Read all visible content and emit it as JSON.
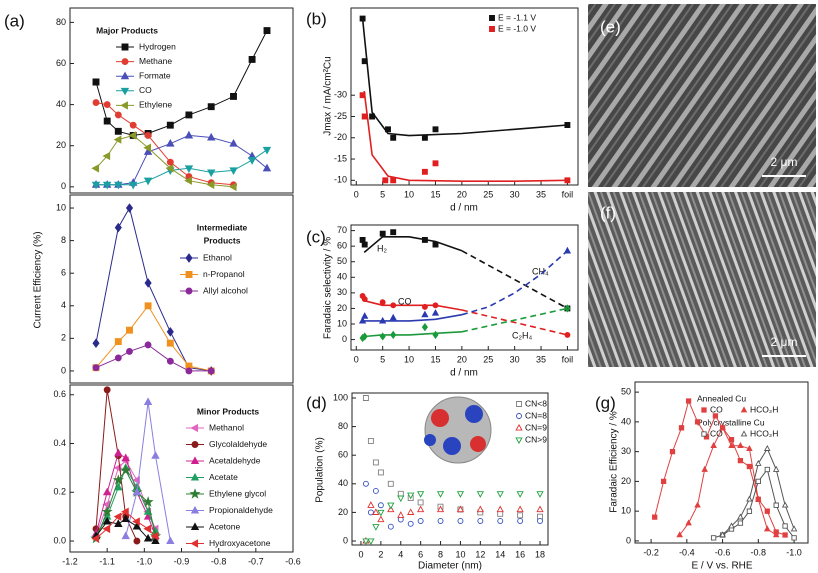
{
  "chart_data": [
    {
      "type": "line",
      "panel_label": "(a)",
      "legend_title": "Major Products",
      "x": [
        -1.13,
        -1.1,
        -1.07,
        -1.03,
        -0.99,
        -0.93,
        -0.88,
        -0.82,
        -0.76,
        -0.71,
        -0.67
      ],
      "xlim": [
        -1.2,
        -0.6
      ],
      "ylim": [
        -3,
        87
      ],
      "yticks": [
        0,
        20,
        40,
        60,
        80
      ],
      "series": [
        {
          "name": "Hydrogen",
          "color": "#111111",
          "marker": "square",
          "values": [
            51,
            32,
            27,
            25,
            26,
            30,
            35,
            39,
            44,
            62,
            76
          ]
        },
        {
          "name": "Methane",
          "color": "#e03c31",
          "marker": "circle",
          "values": [
            41,
            40,
            35,
            30,
            25,
            12,
            5,
            2,
            1,
            null,
            null
          ]
        },
        {
          "name": "Formate",
          "color": "#4b4fb8",
          "marker": "triangle",
          "values": [
            1,
            1,
            1,
            2,
            17,
            21,
            25,
            24,
            21,
            15,
            9
          ]
        },
        {
          "name": "CO",
          "color": "#1aa0a0",
          "marker": "down",
          "values": [
            1,
            1,
            1,
            1,
            3,
            8,
            9,
            7,
            8,
            13,
            18
          ]
        },
        {
          "name": "Ethylene",
          "color": "#8a9a2a",
          "marker": "left",
          "values": [
            9,
            15,
            23,
            25,
            19,
            9,
            3,
            1,
            0,
            null,
            null
          ]
        }
      ]
    },
    {
      "type": "line",
      "ylabel": "Current Efficiency (%)",
      "legend_title": [
        "Intermediate",
        "Products"
      ],
      "x": [
        -1.13,
        -1.07,
        -1.04,
        -0.99,
        -0.93,
        -0.88,
        -0.82
      ],
      "xlim": [
        -1.2,
        -0.6
      ],
      "ylim": [
        -0.74,
        10.8
      ],
      "yticks": [
        0,
        2,
        4,
        6,
        8,
        10
      ],
      "series": [
        {
          "name": "Ethanol",
          "color": "#2a2a8c",
          "marker": "diamond",
          "values": [
            1.7,
            8.8,
            10,
            5.4,
            2.4,
            0.2,
            0
          ]
        },
        {
          "name": "n-Propanol",
          "color": "#f0901e",
          "marker": "square",
          "values": [
            0.2,
            1.8,
            2.5,
            4,
            1.7,
            0.3,
            0
          ]
        },
        {
          "name": "Allyl alcohol",
          "color": "#8a2a9a",
          "marker": "circle",
          "values": [
            0.2,
            0.8,
            1.2,
            1.6,
            0.6,
            0,
            0
          ]
        }
      ]
    },
    {
      "type": "line",
      "legend_title": "Minor Products",
      "x": [
        -1.13,
        -1.1,
        -1.07,
        -1.05,
        -1.02,
        -0.99,
        -0.97,
        -0.93
      ],
      "xlim": [
        -1.2,
        -0.6
      ],
      "ylim": [
        -0.045,
        0.64
      ],
      "xticks": [
        -1.2,
        -1.1,
        {
          "value": -1,
          "label": "-1.0"
        },
        -0.9,
        -0.8,
        -0.7,
        -0.6
      ],
      "yticks": [
        {
          "value": 0,
          "label": "0.0"
        },
        0.2,
        0.4,
        0.6
      ],
      "series": [
        {
          "name": "Methanol",
          "color": "#e066c0",
          "marker": "left",
          "values": [
            0.02,
            0.15,
            0.3,
            0.33,
            0.25,
            0.12,
            0.05,
            null
          ]
        },
        {
          "name": "Glycolaldehyde",
          "color": "#8b1a1a",
          "marker": "circle",
          "values": [
            0.05,
            0.62,
            0.35,
            0.1,
            0,
            null,
            null,
            null
          ]
        },
        {
          "name": "Acetaldehyde",
          "color": "#d02090",
          "marker": "triangle",
          "values": [
            0.03,
            0.2,
            0.36,
            0.34,
            0.2,
            0.1,
            0.02,
            null
          ]
        },
        {
          "name": "Acetate",
          "color": "#20a060",
          "marker": "triangle",
          "values": [
            0.02,
            0.1,
            0.22,
            0.3,
            0.22,
            0.12,
            0.04,
            null
          ]
        },
        {
          "name": "Ethylene glycol",
          "color": "#2e7d32",
          "marker": "star",
          "values": [
            0.01,
            0.12,
            0.25,
            0.29,
            0.2,
            0.16,
            0.02,
            null
          ]
        },
        {
          "name": "Propionaldehyde",
          "color": "#8a7fe0",
          "marker": "triangle",
          "values": [
            null,
            null,
            null,
            0.02,
            0.2,
            0.57,
            0.35,
            0
          ]
        },
        {
          "name": "Acetone",
          "color": "#111111",
          "marker": "triangle",
          "values": [
            0.02,
            0.08,
            0.07,
            0.09,
            0.06,
            0.01,
            0,
            null
          ]
        },
        {
          "name": "Hydroxyacetone",
          "color": "#e03030",
          "marker": "left",
          "values": [
            0.01,
            0.05,
            0.1,
            0.12,
            0.08,
            0.05,
            0.02,
            null
          ]
        }
      ]
    },
    {
      "type": "scatter",
      "panel_label": "(b)",
      "ylabel": "Jmax / mA/cm²Cu",
      "xlabel": "d / nm",
      "xlim": [
        -1,
        42
      ],
      "ylim": [
        -8.9,
        -50.5
      ],
      "xticks": [
        0,
        5,
        10,
        15,
        20,
        25,
        30,
        35,
        {
          "value": 40,
          "label": "foil"
        }
      ],
      "yticks": [
        -10,
        -15,
        -20,
        -25,
        -30
      ],
      "series": [
        {
          "name": "E = -1.1 V",
          "color": "#111111",
          "marker": "square",
          "x": [
            1.2,
            1.6,
            3,
            6,
            7,
            13,
            15,
            40
          ],
          "values": [
            -48,
            -38,
            -25,
            -22,
            -20,
            -20,
            -22,
            -23
          ]
        },
        {
          "name": "E = -1.0 V",
          "color": "#e02020",
          "marker": "square",
          "x": [
            1.2,
            1.6,
            5.5,
            7,
            13,
            15,
            40
          ],
          "values": [
            -30,
            -25,
            -10,
            -10,
            -12,
            -14,
            -10
          ]
        },
        {
          "style": "line",
          "color": "#111111",
          "x": [
            1.2,
            3,
            6,
            10,
            20,
            30,
            40
          ],
          "values": [
            -48,
            -26,
            -21,
            -20.5,
            -21,
            -22,
            -23
          ]
        },
        {
          "style": "line",
          "color": "#e02020",
          "x": [
            1.5,
            3,
            6,
            10,
            20,
            30,
            40
          ],
          "values": [
            -31,
            -16,
            -11,
            -10,
            -9.8,
            -9.8,
            -10
          ]
        }
      ]
    },
    {
      "type": "scatter",
      "panel_label": "(c)",
      "ylabel": "Faradaic selectivity / %",
      "xlabel": "d / nm",
      "x": [
        1.2,
        1.6,
        5,
        7,
        13,
        15,
        40
      ],
      "xlim": [
        -1,
        42
      ],
      "ylim": [
        -6.7,
        73.6
      ],
      "xticks": [
        0,
        5,
        10,
        15,
        20,
        25,
        30,
        35,
        {
          "value": 40,
          "label": "foil"
        }
      ],
      "yticks": [
        0,
        10,
        20,
        30,
        40,
        50,
        60,
        70
      ],
      "annotations": [
        {
          "text": "H₂",
          "color": "#111111"
        },
        {
          "text": "CO",
          "color": "#e02020"
        },
        {
          "text": "CH₄",
          "color": "#2a3ab0"
        },
        {
          "text": "C₂H₄",
          "color": "#1a9a3a"
        }
      ],
      "series": [
        {
          "color": "#111111",
          "marker": "square",
          "values": [
            64,
            61,
            68,
            69,
            64,
            61,
            20
          ]
        },
        {
          "color": "#e02020",
          "marker": "circle",
          "values": [
            28,
            26,
            24,
            22,
            21,
            22,
            3
          ]
        },
        {
          "color": "#2a3ab0",
          "marker": "triangle",
          "values": [
            12,
            15,
            12,
            14,
            16,
            17,
            57
          ]
        },
        {
          "color": "#1a9a3a",
          "marker": "diamond",
          "values": [
            1,
            2,
            2,
            3,
            8,
            3,
            20
          ]
        },
        {
          "style": "line",
          "color": "#111111",
          "x": [
            1.5,
            5,
            10,
            15,
            20
          ],
          "values": [
            56,
            66,
            66,
            63,
            57
          ]
        },
        {
          "style": "line",
          "dash": true,
          "color": "#111111",
          "x": [
            20,
            40
          ],
          "values": [
            57,
            20
          ]
        },
        {
          "style": "line",
          "color": "#e02020",
          "x": [
            1.5,
            5,
            10,
            15,
            20
          ],
          "values": [
            25,
            22,
            22,
            22,
            19
          ]
        },
        {
          "style": "line",
          "dash": true,
          "color": "#e02020",
          "x": [
            20,
            40
          ],
          "values": [
            19,
            3
          ]
        },
        {
          "style": "line",
          "color": "#2a3ab0",
          "x": [
            1.5,
            5,
            10,
            15,
            20
          ],
          "values": [
            12,
            12,
            12,
            13,
            16
          ]
        },
        {
          "style": "line",
          "dash": true,
          "color": "#2a3ab0",
          "x": [
            20,
            25,
            30,
            35,
            40
          ],
          "values": [
            16,
            21,
            30,
            42,
            57
          ]
        },
        {
          "style": "line",
          "color": "#1a9a3a",
          "x": [
            1.5,
            5,
            10,
            15,
            20
          ],
          "values": [
            2,
            3,
            3,
            4,
            5
          ]
        },
        {
          "style": "line",
          "dash": true,
          "color": "#1a9a3a",
          "x": [
            20,
            40
          ],
          "values": [
            5,
            20
          ]
        }
      ]
    },
    {
      "type": "scatter",
      "panel_label": "(d)",
      "ylabel": "Population (%)",
      "xlabel": "Diameter (nm)",
      "x": [
        0.5,
        1,
        1.5,
        2,
        3,
        4,
        5,
        6,
        8,
        10,
        12,
        14,
        16,
        18
      ],
      "xlim": [
        -0.9,
        18.8
      ],
      "ylim": [
        -2.8,
        103.5
      ],
      "xticks": [
        0,
        2,
        4,
        6,
        8,
        10,
        12,
        14,
        16,
        18
      ],
      "yticks": [
        0,
        20,
        40,
        60,
        80,
        100
      ],
      "series": [
        {
          "name": "CN<8",
          "color": "#808080",
          "marker": "square",
          "open": true,
          "values": [
            100,
            70,
            55,
            48,
            40,
            33,
            30,
            27,
            24,
            22,
            20,
            19,
            18,
            17
          ]
        },
        {
          "name": "CN=8",
          "color": "#3050c0",
          "marker": "circle",
          "open": true,
          "values": [
            40,
            20,
            35,
            25,
            10,
            15,
            12,
            14,
            14,
            14,
            14,
            14,
            14,
            14
          ]
        },
        {
          "name": "CN=9",
          "color": "#e03030",
          "marker": "triangle",
          "open": true,
          "values": [
            0,
            25,
            20,
            15,
            22,
            18,
            20,
            22,
            22,
            22,
            22,
            22,
            22,
            22
          ]
        },
        {
          "name": "CN>9",
          "color": "#20a040",
          "marker": "down",
          "open": true,
          "values": [
            0,
            0,
            10,
            20,
            25,
            30,
            32,
            33,
            33,
            33,
            33,
            33,
            33,
            33
          ]
        }
      ]
    },
    {
      "type": "line",
      "panel_label": "(g)",
      "ylabel": "Faradaic Efficiency / %",
      "xlabel": "E / V vs. RHE",
      "legend_groups": [
        "Annealed Cu",
        "Polycrystalline Cu"
      ],
      "xlim": [
        -0.11,
        -1.078
      ],
      "ylim": [
        -0.7,
        53.4
      ],
      "xticks": [
        -0.2,
        -0.4,
        -0.6,
        -0.8,
        {
          "value": -1,
          "label": "-1.0"
        }
      ],
      "yticks": [
        0,
        10,
        20,
        30,
        40,
        50
      ],
      "series": [
        {
          "name": "CO",
          "color": "#e04040",
          "marker": "square",
          "x": [
            -0.22,
            -0.27,
            -0.32,
            -0.37,
            -0.41,
            -0.46,
            -0.51,
            -0.56,
            -0.6,
            -0.65,
            -0.7,
            -0.75,
            -0.8,
            -0.85,
            -0.9,
            -0.95
          ],
          "values": [
            8,
            20,
            30,
            38,
            47,
            40,
            35,
            42,
            38,
            34,
            27,
            25,
            14,
            10,
            3,
            2
          ]
        },
        {
          "name": "HCO₂H",
          "color": "#e04040",
          "marker": "triangle",
          "x": [
            -0.36,
            -0.41,
            -0.46,
            -0.5,
            -0.55,
            -0.6,
            -0.65,
            -0.7,
            -0.75,
            -0.8,
            -0.85,
            -0.9
          ],
          "values": [
            2,
            6,
            12,
            24,
            32,
            38,
            32,
            32,
            31,
            14,
            4,
            2
          ]
        },
        {
          "name": "CO",
          "color": "#555555",
          "marker": "square",
          "open": true,
          "x": [
            -0.55,
            -0.6,
            -0.65,
            -0.7,
            -0.75,
            -0.8,
            -0.85,
            -0.9,
            -0.95,
            -1.0
          ],
          "values": [
            1,
            2,
            4,
            6,
            10,
            20,
            24,
            12,
            5,
            1
          ]
        },
        {
          "name": "HCO₂H",
          "color": "#555555",
          "marker": "triangle",
          "open": true,
          "x": [
            -0.6,
            -0.65,
            -0.7,
            -0.75,
            -0.8,
            -0.85,
            -0.9,
            -0.95,
            -1.0
          ],
          "values": [
            2,
            5,
            8,
            14,
            26,
            31,
            24,
            12,
            4
          ]
        }
      ]
    }
  ],
  "images": [
    {
      "label": "(e)",
      "scale_bar": "2 μm"
    },
    {
      "label": "(f)",
      "scale_bar": "2 μm"
    }
  ]
}
